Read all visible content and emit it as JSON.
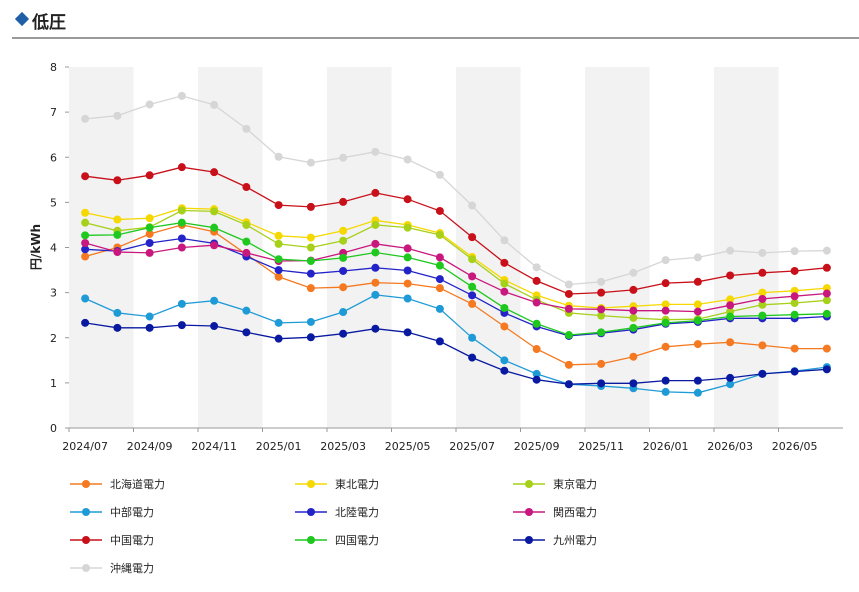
{
  "header": {
    "title": "低圧"
  },
  "colors": {
    "accent": "#1f5fa8"
  },
  "chart_data": {
    "type": "line",
    "title": "",
    "xlabel": "",
    "ylabel": "円/kWh",
    "ylim": [
      0,
      8
    ],
    "yticks": [
      "0",
      "1",
      "2",
      "3",
      "4",
      "5",
      "6",
      "7",
      "8"
    ],
    "grid": "alternating vertical bands",
    "legend_position": "bottom",
    "categories": [
      "2024/07",
      "2024/08",
      "2024/09",
      "2024/10",
      "2024/11",
      "2024/12",
      "2025/01",
      "2025/02",
      "2025/03",
      "2025/04",
      "2025/05",
      "2025/06",
      "2025/07",
      "2025/08",
      "2025/09",
      "2025/10",
      "2025/11",
      "2025/12",
      "2026/01",
      "2026/02",
      "2026/03",
      "2026/04",
      "2026/05",
      "2026/06"
    ],
    "x_tick_labels": [
      "2024/07",
      "2024/09",
      "2024/11",
      "2025/01",
      "2025/03",
      "2025/05",
      "2025/07",
      "2025/09",
      "2025/11",
      "2026/01",
      "2026/03",
      "2026/05"
    ],
    "series": [
      {
        "name": "北海道電力",
        "color": "#f47920",
        "values": [
          3.8,
          4.0,
          4.3,
          4.5,
          4.35,
          3.85,
          3.35,
          3.1,
          3.12,
          3.22,
          3.2,
          3.1,
          2.75,
          2.25,
          1.75,
          1.4,
          1.42,
          1.58,
          1.8,
          1.86,
          1.9,
          1.83,
          1.76,
          1.76
        ]
      },
      {
        "name": "東北電力",
        "color": "#f5d800",
        "values": [
          4.77,
          4.62,
          4.65,
          4.87,
          4.85,
          4.56,
          4.26,
          4.22,
          4.37,
          4.6,
          4.5,
          4.32,
          3.79,
          3.28,
          2.94,
          2.71,
          2.66,
          2.7,
          2.74,
          2.74,
          2.85,
          3.0,
          3.04,
          3.1
        ]
      },
      {
        "name": "東京電力",
        "color": "#a6d01a",
        "values": [
          4.55,
          4.37,
          4.45,
          4.82,
          4.8,
          4.5,
          4.08,
          4.0,
          4.15,
          4.5,
          4.44,
          4.28,
          3.74,
          3.2,
          2.84,
          2.55,
          2.49,
          2.44,
          2.4,
          2.41,
          2.58,
          2.73,
          2.77,
          2.83
        ]
      },
      {
        "name": "中部電力",
        "color": "#1e9bd7",
        "values": [
          2.87,
          2.55,
          2.47,
          2.75,
          2.82,
          2.6,
          2.33,
          2.35,
          2.57,
          2.95,
          2.87,
          2.64,
          2.0,
          1.5,
          1.2,
          0.97,
          0.93,
          0.88,
          0.8,
          0.78,
          0.97,
          1.2,
          1.26,
          1.35
        ]
      },
      {
        "name": "北陸電力",
        "color": "#2323c8",
        "values": [
          3.96,
          3.92,
          4.1,
          4.2,
          4.09,
          3.8,
          3.5,
          3.42,
          3.48,
          3.55,
          3.49,
          3.3,
          2.94,
          2.55,
          2.25,
          2.04,
          2.1,
          2.18,
          2.31,
          2.35,
          2.43,
          2.43,
          2.43,
          2.47
        ]
      },
      {
        "name": "関西電力",
        "color": "#c8187e",
        "values": [
          4.1,
          3.9,
          3.88,
          4.0,
          4.05,
          3.88,
          3.7,
          3.71,
          3.88,
          4.08,
          3.98,
          3.78,
          3.36,
          3.02,
          2.78,
          2.64,
          2.63,
          2.6,
          2.6,
          2.58,
          2.72,
          2.86,
          2.92,
          2.98
        ]
      },
      {
        "name": "中国電力",
        "color": "#c8101a",
        "values": [
          5.58,
          5.49,
          5.6,
          5.78,
          5.67,
          5.34,
          4.94,
          4.9,
          5.01,
          5.21,
          5.07,
          4.81,
          4.23,
          3.66,
          3.26,
          2.97,
          3.0,
          3.06,
          3.21,
          3.24,
          3.38,
          3.44,
          3.48,
          3.55
        ]
      },
      {
        "name": "四国電力",
        "color": "#1ec81e",
        "values": [
          4.27,
          4.28,
          4.44,
          4.55,
          4.44,
          4.13,
          3.74,
          3.7,
          3.77,
          3.89,
          3.78,
          3.6,
          3.13,
          2.66,
          2.31,
          2.06,
          2.12,
          2.22,
          2.33,
          2.38,
          2.47,
          2.49,
          2.51,
          2.53
        ]
      },
      {
        "name": "九州電力",
        "color": "#0a1aa0",
        "values": [
          2.33,
          2.22,
          2.22,
          2.28,
          2.26,
          2.12,
          1.98,
          2.01,
          2.09,
          2.2,
          2.12,
          1.92,
          1.56,
          1.27,
          1.07,
          0.97,
          0.99,
          0.99,
          1.05,
          1.05,
          1.11,
          1.2,
          1.25,
          1.3
        ]
      },
      {
        "name": "沖縄電力",
        "color": "#d6d6d6",
        "values": [
          6.85,
          6.92,
          7.17,
          7.36,
          7.16,
          6.63,
          6.01,
          5.88,
          5.99,
          6.12,
          5.95,
          5.61,
          4.93,
          4.16,
          3.56,
          3.18,
          3.24,
          3.44,
          3.72,
          3.78,
          3.93,
          3.88,
          3.92,
          3.93
        ]
      }
    ]
  }
}
